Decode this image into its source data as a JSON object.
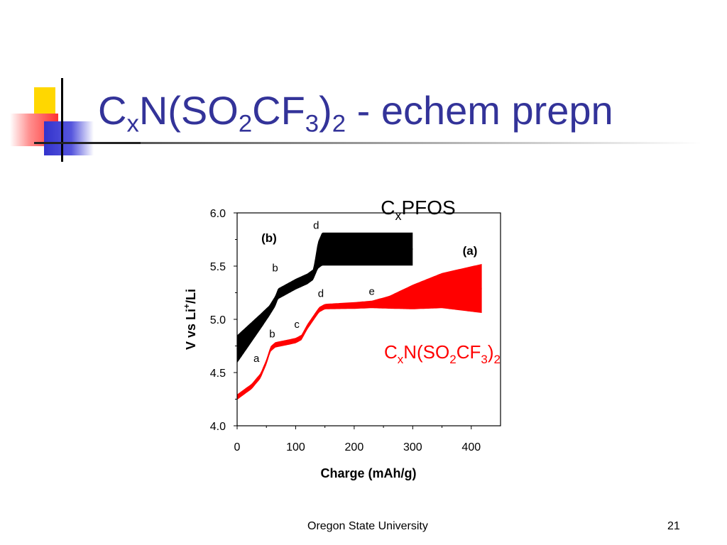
{
  "slide": {
    "title_parts": [
      "C",
      "x",
      "N(SO",
      "2",
      "CF",
      "3",
      ")",
      "2",
      " - echem prepn"
    ],
    "footer": "Oregon State University",
    "page_number": "21"
  },
  "colors": {
    "title": "#333399",
    "series_a": "#ff0000",
    "series_b": "#000000"
  },
  "chart_data": {
    "type": "line",
    "xlabel": "Charge (mAh/g)",
    "ylabel_parts": [
      "V vs Li",
      "+",
      "/Li"
    ],
    "xlim": [
      0,
      450
    ],
    "ylim": [
      4.0,
      6.0
    ],
    "xticks": [
      "0",
      "100",
      "200",
      "300",
      "400"
    ],
    "yticks": [
      "4.0",
      "4.5",
      "5.0",
      "5.5",
      "6.0"
    ],
    "grid": false,
    "series": [
      {
        "name": "(b)",
        "color": "#000000",
        "label_parts": [
          "C",
          "x",
          "PFOS"
        ],
        "points": [
          [
            0,
            4.72
          ],
          [
            20,
            4.85
          ],
          [
            40,
            4.98
          ],
          [
            55,
            5.08
          ],
          [
            65,
            5.17
          ],
          [
            70,
            5.24
          ],
          [
            80,
            5.27
          ],
          [
            100,
            5.33
          ],
          [
            120,
            5.38
          ],
          [
            130,
            5.42
          ],
          [
            138,
            5.6
          ],
          [
            145,
            5.66
          ],
          [
            300,
            5.66
          ]
        ],
        "band": [
          [
            0,
            0.26
          ],
          [
            55,
            0.1
          ],
          [
            70,
            0.1
          ],
          [
            130,
            0.1
          ],
          [
            138,
            0.25
          ],
          [
            145,
            0.31
          ],
          [
            300,
            0.31
          ]
        ],
        "markers": [
          {
            "text": "b",
            "x": 65,
            "y": 5.45
          },
          {
            "text": "d",
            "x": 135,
            "y": 5.85
          }
        ]
      },
      {
        "name": "(a)",
        "color": "#ff0000",
        "label_parts": [
          "C",
          "x",
          "N(SO",
          "2",
          "CF",
          "3",
          ")",
          "2"
        ],
        "points": [
          [
            0,
            4.27
          ],
          [
            25,
            4.37
          ],
          [
            40,
            4.47
          ],
          [
            50,
            4.6
          ],
          [
            57,
            4.72
          ],
          [
            65,
            4.76
          ],
          [
            100,
            4.8
          ],
          [
            110,
            4.83
          ],
          [
            120,
            4.93
          ],
          [
            140,
            5.09
          ],
          [
            150,
            5.12
          ],
          [
            200,
            5.13
          ],
          [
            230,
            5.14
          ],
          [
            260,
            5.16
          ],
          [
            300,
            5.21
          ],
          [
            350,
            5.27
          ],
          [
            418,
            5.29
          ]
        ],
        "band": [
          [
            0,
            0.05
          ],
          [
            150,
            0.05
          ],
          [
            230,
            0.07
          ],
          [
            260,
            0.12
          ],
          [
            300,
            0.23
          ],
          [
            350,
            0.33
          ],
          [
            418,
            0.46
          ]
        ],
        "markers": [
          {
            "text": "a",
            "x": 33,
            "y": 4.6
          },
          {
            "text": "b",
            "x": 60,
            "y": 4.83
          },
          {
            "text": "c",
            "x": 102,
            "y": 4.92
          },
          {
            "text": "d",
            "x": 143,
            "y": 5.21
          },
          {
            "text": "e",
            "x": 230,
            "y": 5.23
          }
        ]
      }
    ]
  }
}
